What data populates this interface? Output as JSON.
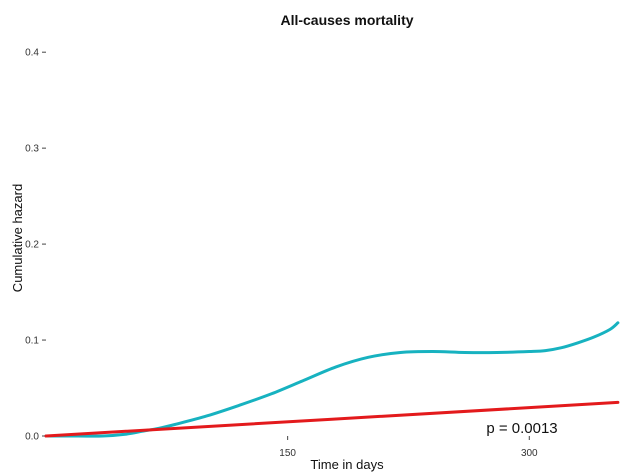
{
  "chart_data": {
    "type": "line",
    "title": "All-causes mortality",
    "xlabel": "Time in days",
    "ylabel": "Cumulative hazard",
    "xlim": [
      0,
      365
    ],
    "ylim": [
      0,
      0.42
    ],
    "x_ticks": [
      150,
      300
    ],
    "y_ticks": [
      0.0,
      0.1,
      0.2,
      0.3,
      0.4
    ],
    "y_tick_labels": [
      "0.0",
      "0.1",
      "0.2",
      "0.3",
      "0.4"
    ],
    "grid": false,
    "annotation": "p = 0.0013",
    "series": [
      {
        "color": "#17b2c0",
        "x": [
          0,
          20,
          35,
          50,
          60,
          70,
          80,
          100,
          120,
          140,
          160,
          180,
          200,
          220,
          240,
          260,
          280,
          300,
          310,
          320,
          330,
          340,
          350,
          355
        ],
        "y": [
          0.0,
          0.0,
          0.0,
          0.002,
          0.005,
          0.008,
          0.012,
          0.021,
          0.032,
          0.044,
          0.058,
          0.072,
          0.082,
          0.087,
          0.088,
          0.087,
          0.087,
          0.088,
          0.089,
          0.092,
          0.097,
          0.103,
          0.111,
          0.118
        ]
      },
      {
        "color": "#e31a1c",
        "x": [
          0,
          355
        ],
        "y": [
          0.0,
          0.035
        ]
      }
    ]
  }
}
